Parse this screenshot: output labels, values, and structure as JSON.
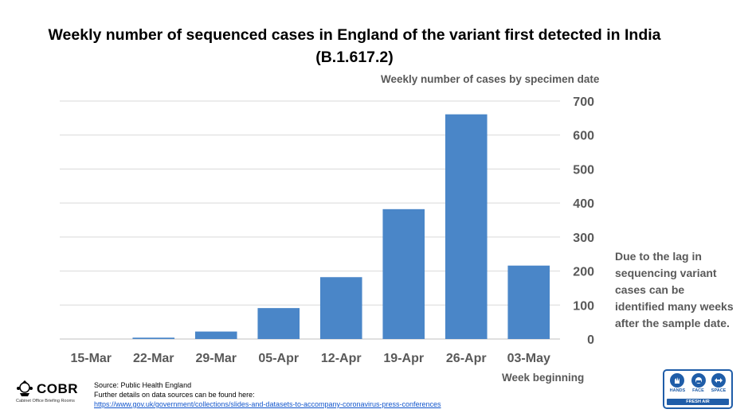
{
  "chart_data": {
    "type": "bar",
    "title": "Weekly number of sequenced cases in England of the variant first detected in India (B.1.617.2)",
    "ylabel": "Weekly number of cases by specimen date",
    "xlabel": "Week beginning",
    "categories": [
      "15-Mar",
      "22-Mar",
      "29-Mar",
      "05-Apr",
      "12-Apr",
      "19-Apr",
      "26-Apr",
      "03-May"
    ],
    "values": [
      0,
      4,
      22,
      91,
      182,
      382,
      661,
      216
    ],
    "ylim": [
      0,
      700
    ],
    "yticks": [
      0,
      100,
      200,
      300,
      400,
      500,
      600,
      700
    ],
    "y_axis_side": "right",
    "grid": true,
    "bar_color": "#4a86c8"
  },
  "note": "Due to the lag in sequencing variant cases can be identified many weeks after the sample date.",
  "footer": {
    "logo_text": "COBR",
    "logo_subtext": "Cabinet Office Briefing Rooms",
    "source_line": "Source: Public Health England",
    "details_line": "Further details on data sources can be found here:",
    "link": "https://www.gov.uk/government/collections/slides-and-datasets-to-accompany-coronavirus-press-conferences"
  },
  "badge": {
    "hands": "HANDS",
    "face": "FACE",
    "space": "SPACE",
    "fresh_air": "FRESH AIR",
    "icons": [
      "hands-icon",
      "face-icon",
      "space-icon"
    ],
    "color": "#1f5da8"
  }
}
